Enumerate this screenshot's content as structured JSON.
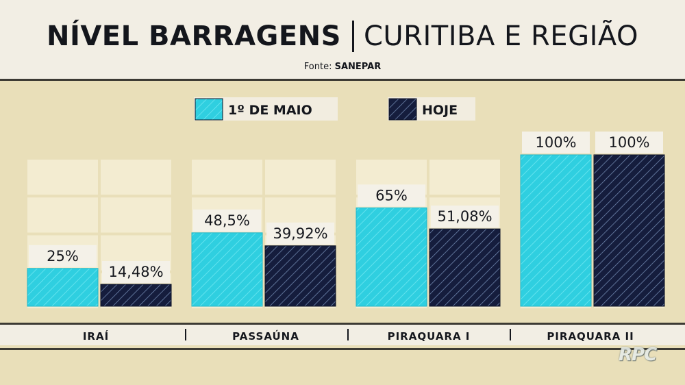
{
  "header": {
    "title": "NÍVEL BARRAGENS",
    "subtitle": "CURITIBA E REGIÃO",
    "source_label": "Fonte:",
    "source_value": "SANEPAR"
  },
  "watermark": "RPC",
  "chart_data": {
    "type": "bar",
    "title": "NÍVEL BARRAGENS | CURITIBA E REGIÃO",
    "categories": [
      "IRAÍ",
      "PASSAÚNA",
      "PIRAQUARA I",
      "PIRAQUARA II"
    ],
    "series": [
      {
        "name": "1º DE MAIO",
        "values": [
          25,
          48.5,
          65,
          100
        ],
        "labels": [
          "25%",
          "48,5%",
          "65%",
          "100%"
        ],
        "color": "#2fcfe0"
      },
      {
        "name": "HOJE",
        "values": [
          14.48,
          39.92,
          51.08,
          100
        ],
        "labels": [
          "14,48%",
          "39,92%",
          "51,08%",
          "100%"
        ],
        "color": "#151d3d"
      }
    ],
    "ylim": [
      0,
      100
    ],
    "legend": "top-center",
    "xlabel": "",
    "ylabel": ""
  }
}
